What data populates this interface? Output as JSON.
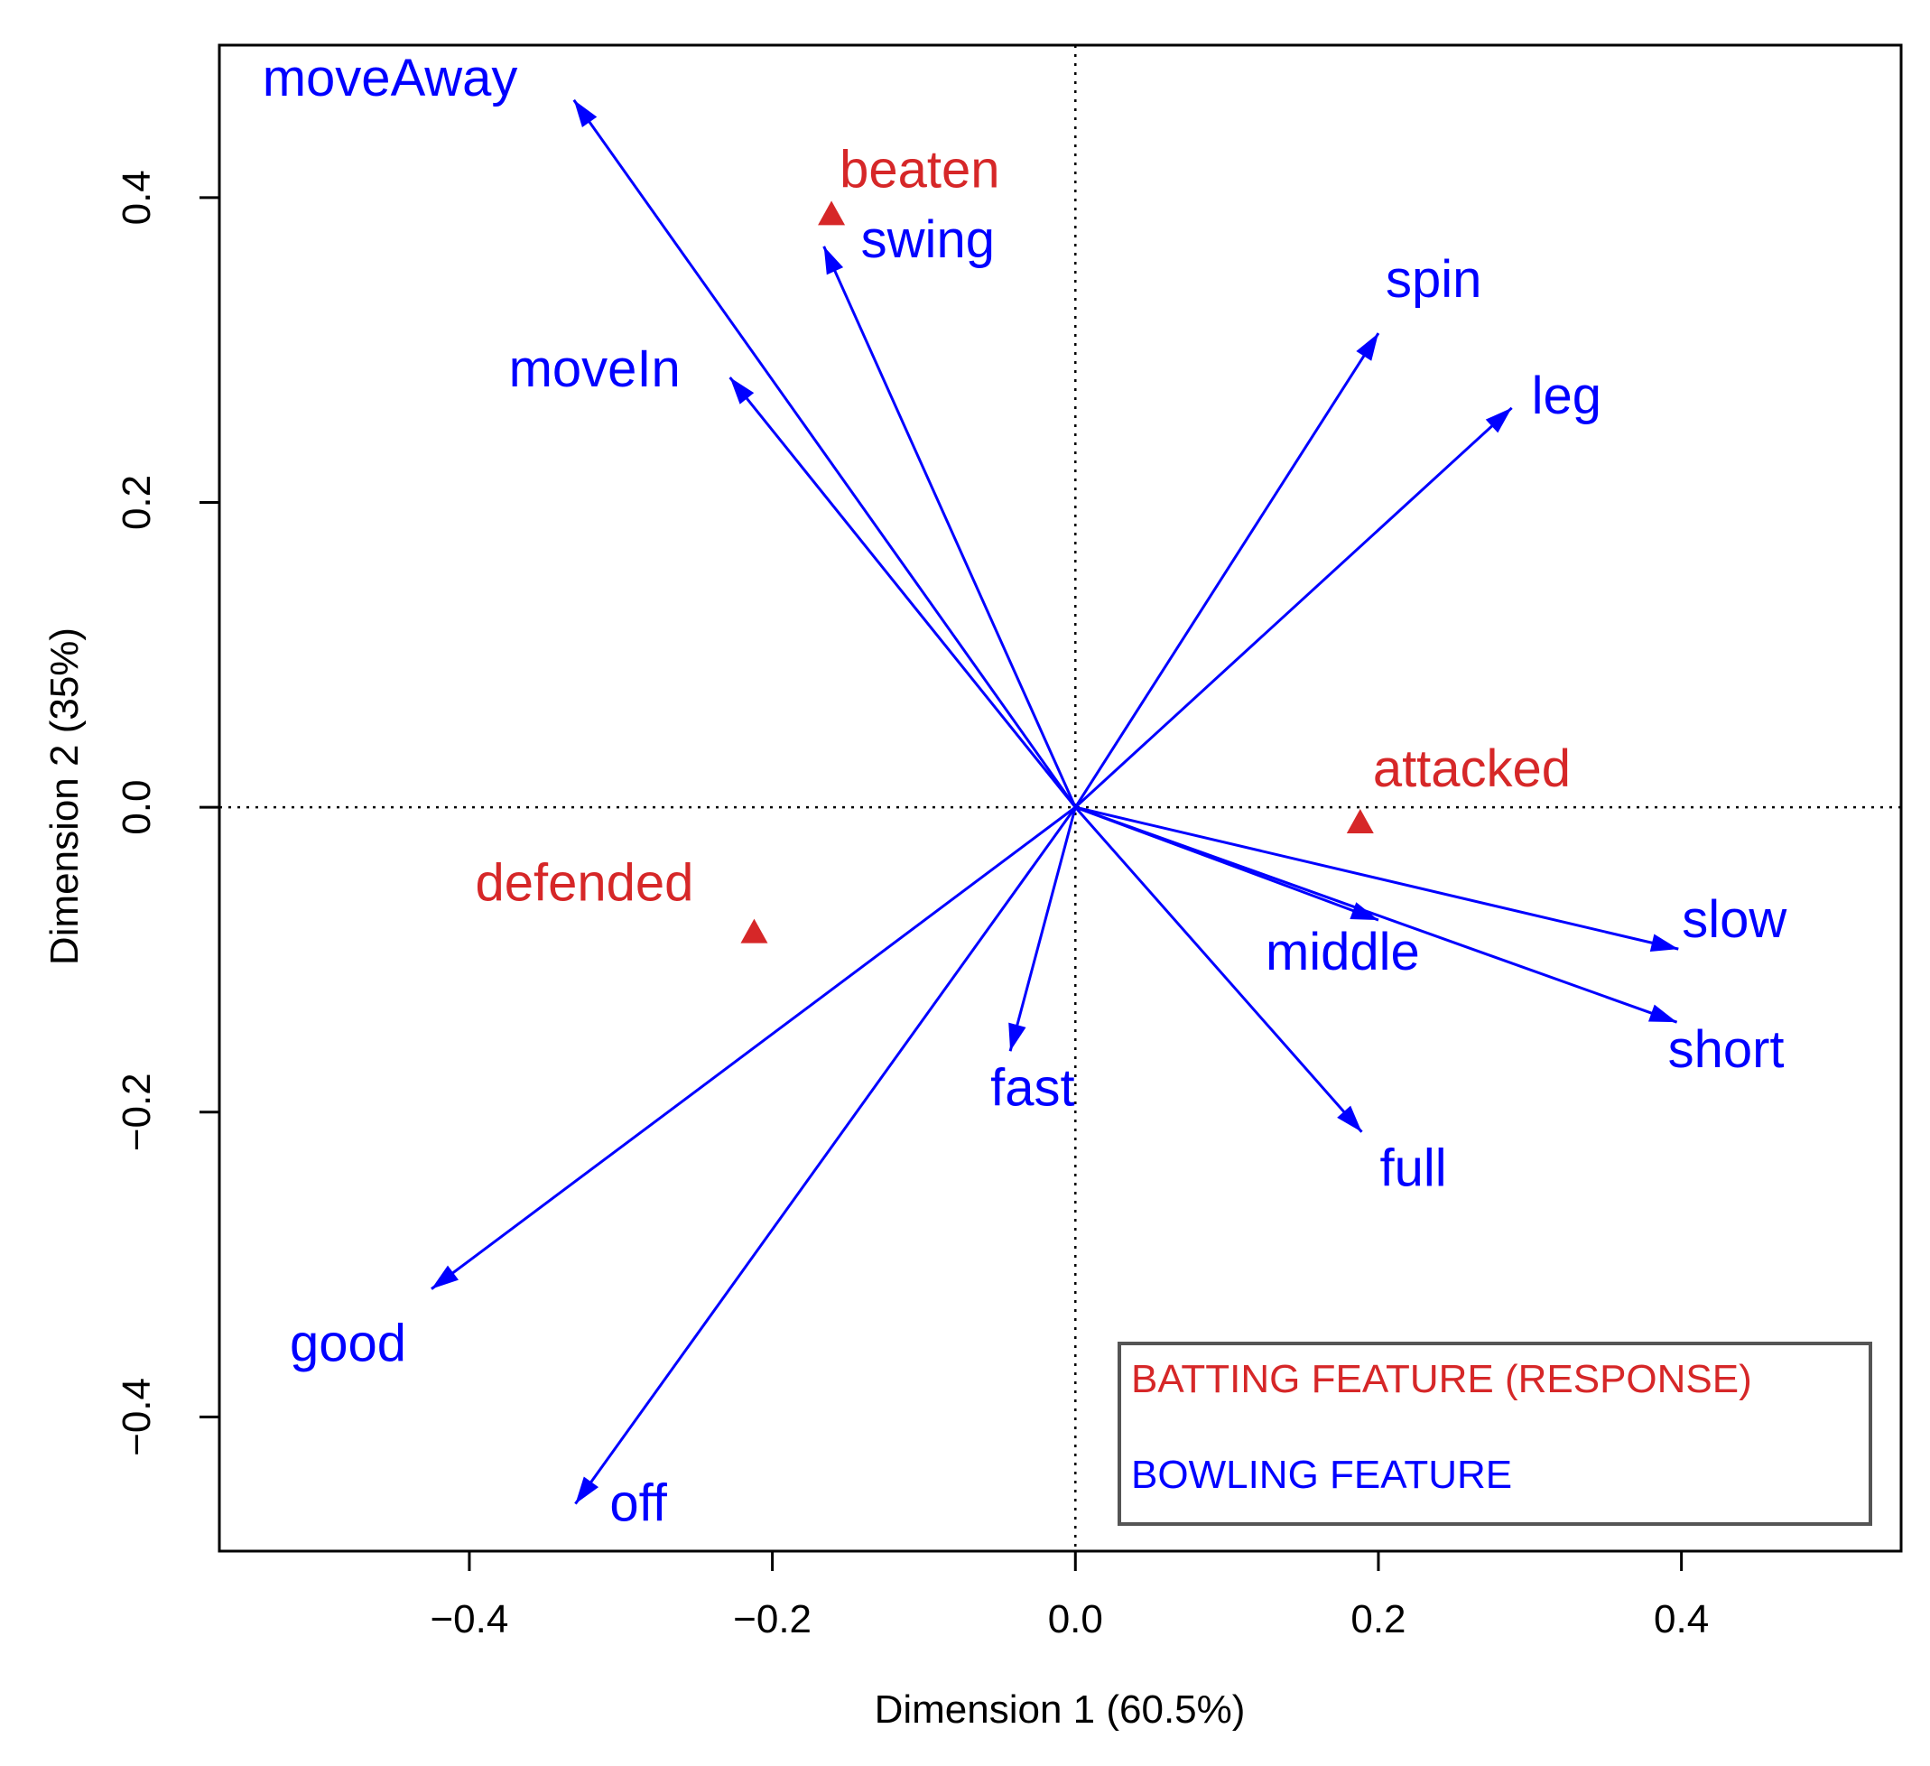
{
  "chart_data": {
    "type": "scatter",
    "xlabel": "Dimension 1 (60.5%)",
    "ylabel": "Dimension 2 (35%)",
    "xlim": [
      -0.565,
      0.545
    ],
    "ylim": [
      -0.488,
      0.5
    ],
    "x_ticks": [
      -0.4,
      -0.2,
      0.0,
      0.2,
      0.4
    ],
    "x_tick_labels": [
      "−0.4",
      "−0.2",
      "0.0",
      "0.2",
      "0.4"
    ],
    "y_ticks": [
      -0.4,
      -0.2,
      0.0,
      0.2,
      0.4
    ],
    "y_tick_labels": [
      "−0.4",
      "−0.2",
      "0.0",
      "0.2",
      "0.4"
    ],
    "reference_lines": {
      "x": 0,
      "y": 0,
      "style": "dotted"
    },
    "series": [
      {
        "name": "BATTING FEATURE (RESPONSE)",
        "color": "#d62728",
        "marker": "triangle",
        "points": [
          {
            "label": "beaten",
            "x": -0.161,
            "y": 0.389
          },
          {
            "label": "attacked",
            "x": 0.188,
            "y": -0.01
          },
          {
            "label": "defended",
            "x": -0.212,
            "y": -0.082
          }
        ]
      },
      {
        "name": "BOWLING FEATURE",
        "color": "#0000ff",
        "marker": "arrow",
        "points": [
          {
            "label": "moveAway",
            "x": -0.331,
            "y": 0.464
          },
          {
            "label": "swing",
            "x": -0.166,
            "y": 0.368
          },
          {
            "label": "moveIn",
            "x": -0.228,
            "y": 0.282
          },
          {
            "label": "spin",
            "x": 0.2,
            "y": 0.311
          },
          {
            "label": "leg",
            "x": 0.288,
            "y": 0.262
          },
          {
            "label": "slow",
            "x": 0.398,
            "y": -0.093
          },
          {
            "label": "middle",
            "x": 0.2,
            "y": -0.074
          },
          {
            "label": "short",
            "x": 0.397,
            "y": -0.141
          },
          {
            "label": "fast",
            "x": -0.043,
            "y": -0.16
          },
          {
            "label": "full",
            "x": 0.189,
            "y": -0.213
          },
          {
            "label": "good",
            "x": -0.425,
            "y": -0.316
          },
          {
            "label": "off",
            "x": -0.33,
            "y": -0.457
          }
        ]
      }
    ],
    "legend": {
      "position": "bottom-right",
      "entries": [
        {
          "text": "BATTING FEATURE (RESPONSE)",
          "color": "#d62728"
        },
        {
          "text": "BOWLING FEATURE",
          "color": "#0000ff"
        }
      ]
    }
  }
}
